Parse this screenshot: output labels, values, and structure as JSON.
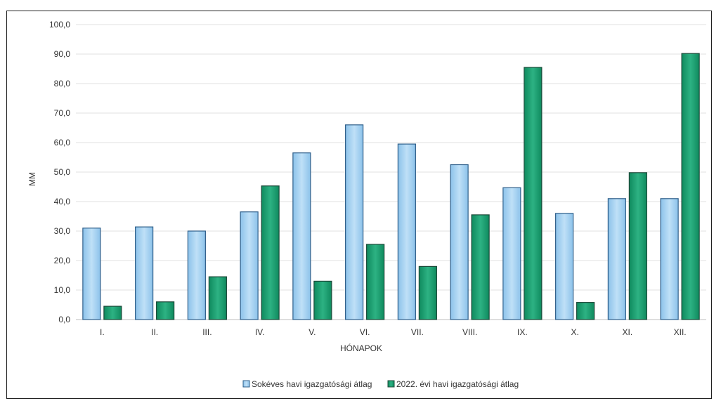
{
  "chart_data": {
    "type": "bar",
    "categories": [
      "I.",
      "II.",
      "III.",
      "IV.",
      "V.",
      "VI.",
      "VII.",
      "VIII.",
      "IX.",
      "X.",
      "XI.",
      "XII."
    ],
    "series": [
      {
        "name": "Sokéves havi igazgatósági átlag",
        "values": [
          31.0,
          31.4,
          30.0,
          36.5,
          56.5,
          66.0,
          59.5,
          52.5,
          44.7,
          36.0,
          41.0,
          41.0
        ],
        "color": "#a9d3f0"
      },
      {
        "name": "2022. évi havi igazgatósági átlag",
        "values": [
          4.5,
          6.0,
          14.5,
          45.3,
          13.0,
          25.5,
          18.0,
          35.5,
          85.5,
          5.8,
          49.8,
          90.2
        ],
        "color": "#1a9a6e"
      }
    ],
    "ylim": [
      0,
      100
    ],
    "yticks": [
      "0,0",
      "10,0",
      "20,0",
      "30,0",
      "40,0",
      "50,0",
      "60,0",
      "70,0",
      "80,0",
      "90,0",
      "100,0"
    ],
    "xlabel": "HÓNAPOK",
    "ylabel": "MM",
    "grid": true,
    "legend_position": "bottom"
  }
}
